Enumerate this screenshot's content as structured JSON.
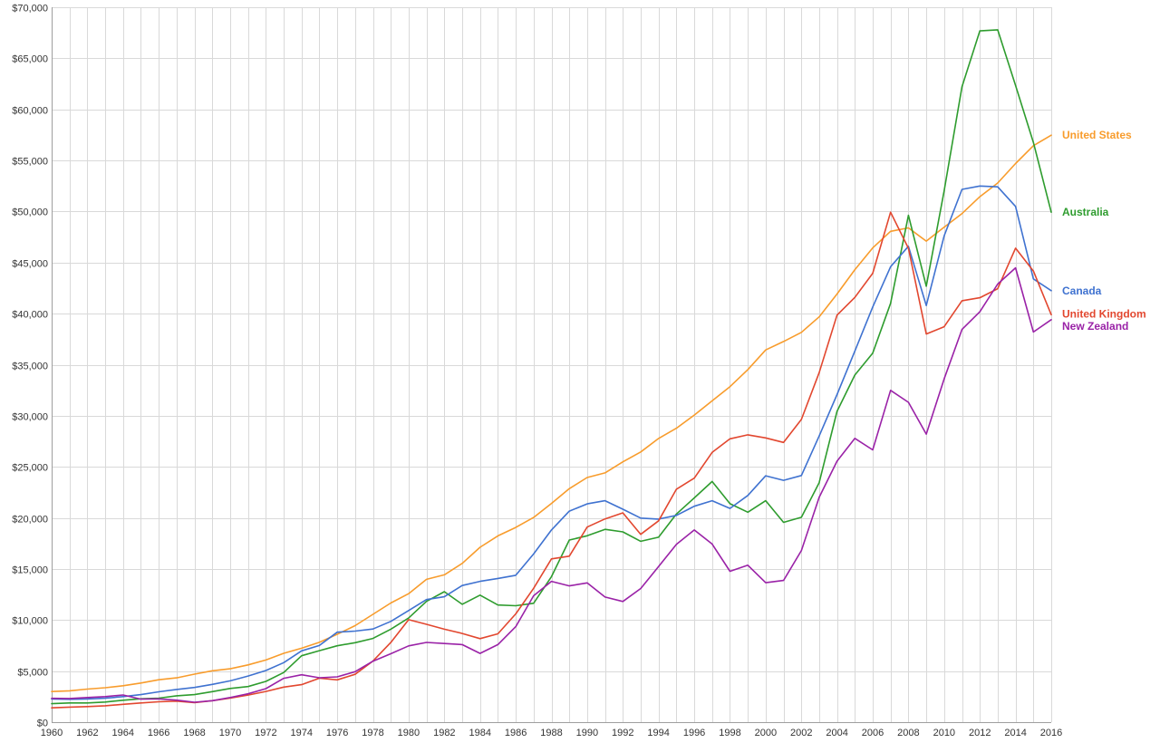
{
  "chart_data": {
    "type": "line",
    "title": "",
    "xlabel": "",
    "ylabel": "",
    "x": [
      1960,
      1961,
      1962,
      1963,
      1964,
      1965,
      1966,
      1967,
      1968,
      1969,
      1970,
      1971,
      1972,
      1973,
      1974,
      1975,
      1976,
      1977,
      1978,
      1979,
      1980,
      1981,
      1982,
      1983,
      1984,
      1985,
      1986,
      1987,
      1988,
      1989,
      1990,
      1991,
      1992,
      1993,
      1994,
      1995,
      1996,
      1997,
      1998,
      1999,
      2000,
      2001,
      2002,
      2003,
      2004,
      2005,
      2006,
      2007,
      2008,
      2009,
      2010,
      2011,
      2012,
      2013,
      2014,
      2015,
      2016
    ],
    "xlim": [
      1960,
      2016
    ],
    "x_ticks": [
      "1960",
      "1962",
      "1964",
      "1966",
      "1968",
      "1970",
      "1972",
      "1974",
      "1976",
      "1978",
      "1980",
      "1982",
      "1984",
      "1986",
      "1988",
      "1990",
      "1992",
      "1994",
      "1996",
      "1998",
      "2000",
      "2002",
      "2004",
      "2006",
      "2008",
      "2010",
      "2012",
      "2014",
      "2016"
    ],
    "ylim": [
      0,
      70000
    ],
    "y_ticks": [
      "$0",
      "$5,000",
      "$10,000",
      "$15,000",
      "$20,000",
      "$25,000",
      "$30,000",
      "$35,000",
      "$40,000",
      "$45,000",
      "$50,000",
      "$55,000",
      "$60,000",
      "$65,000",
      "$70,000"
    ],
    "grid": true,
    "legend": "end-of-line labels at right",
    "series": [
      {
        "name": "United States",
        "color": "#f89c2c",
        "values": [
          3000,
          3070,
          3240,
          3370,
          3570,
          3830,
          4150,
          4340,
          4700,
          5030,
          5230,
          5610,
          6090,
          6740,
          7240,
          7820,
          8610,
          9450,
          10560,
          11670,
          12580,
          13980,
          14430,
          15540,
          17120,
          18240,
          19070,
          20040,
          21420,
          22860,
          23950,
          24410,
          25490,
          26460,
          27780,
          28780,
          30070,
          31460,
          32850,
          34520,
          36450,
          37270,
          38170,
          39680,
          41920,
          44310,
          46440,
          48060,
          48400,
          47100,
          48470,
          49800,
          51450,
          52790,
          54700,
          56440,
          57470
        ]
      },
      {
        "name": "Australia",
        "color": "#2e9c2e",
        "values": [
          1810,
          1880,
          1880,
          1970,
          2150,
          2290,
          2350,
          2580,
          2700,
          2990,
          3300,
          3490,
          3990,
          4860,
          6500,
          7000,
          7480,
          7780,
          8200,
          9100,
          10190,
          11830,
          12780,
          11540,
          12440,
          11470,
          11400,
          11640,
          14250,
          17830,
          18250,
          18880,
          18630,
          17710,
          18110,
          20380,
          21960,
          23560,
          21390,
          20560,
          21680,
          19560,
          20060,
          23450,
          30430,
          33990,
          36140,
          41010,
          49630,
          42680,
          52020,
          62220,
          67680,
          67790,
          62340,
          56760,
          49930
        ]
      },
      {
        "name": "Canada",
        "color": "#3f72d0",
        "values": [
          2260,
          2240,
          2270,
          2340,
          2500,
          2700,
          2970,
          3200,
          3400,
          3700,
          4050,
          4520,
          5060,
          5830,
          6980,
          7510,
          8810,
          8920,
          9120,
          9870,
          10930,
          12000,
          12280,
          13380,
          13790,
          14070,
          14380,
          16470,
          18820,
          20660,
          21370,
          21680,
          20850,
          19980,
          19880,
          20250,
          21140,
          21680,
          20930,
          22200,
          24120,
          23680,
          24150,
          28020,
          32070,
          36340,
          40650,
          44590,
          46600,
          40790,
          47610,
          52170,
          52500,
          52420,
          50500,
          43400,
          42250
        ]
      },
      {
        "name": "United Kingdom",
        "color": "#e2472f",
        "values": [
          1400,
          1470,
          1530,
          1610,
          1750,
          1880,
          2000,
          2060,
          1920,
          2100,
          2350,
          2650,
          3010,
          3430,
          3670,
          4300,
          4140,
          4680,
          5980,
          7800,
          10030,
          9580,
          9100,
          8690,
          8180,
          8650,
          10600,
          13100,
          15990,
          16250,
          19100,
          19900,
          20490,
          18390,
          19710,
          22810,
          23890,
          26410,
          27740,
          28130,
          27830,
          27390,
          29640,
          34220,
          39850,
          41590,
          43950,
          49930,
          46400,
          38010,
          38720,
          41260,
          41560,
          42440,
          46410,
          44170,
          39900
        ]
      },
      {
        "name": "New Zealand",
        "color": "#9a22a7",
        "values": [
          2330,
          2320,
          2410,
          2500,
          2660,
          2250,
          2280,
          2160,
          1950,
          2100,
          2410,
          2780,
          3280,
          4290,
          4640,
          4350,
          4440,
          4940,
          5970,
          6700,
          7470,
          7810,
          7700,
          7590,
          6730,
          7590,
          9350,
          12380,
          13790,
          13340,
          13640,
          12250,
          11820,
          13090,
          15230,
          17410,
          18820,
          17440,
          14770,
          15370,
          13650,
          13880,
          16800,
          22010,
          25550,
          27790,
          26660,
          32490,
          31320,
          28200,
          33610,
          38450,
          40180,
          42900,
          44480,
          38200,
          39410
        ]
      }
    ]
  }
}
